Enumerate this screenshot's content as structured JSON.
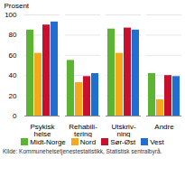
{
  "chart_data": {
    "type": "bar",
    "y_label": "Prosent",
    "categories": [
      "Psykisk\nhelse",
      "Rehabili-\ntering",
      "Utskriv-\nning",
      "Andre"
    ],
    "series": [
      {
        "name": "Midt-Norge",
        "color": "#5cb531",
        "values": [
          85,
          55,
          86,
          42
        ]
      },
      {
        "name": "Nord",
        "color": "#f5a81c",
        "values": [
          62,
          33,
          62,
          16
        ]
      },
      {
        "name": "Sør-Øst",
        "color": "#c8102e",
        "values": [
          90,
          39,
          87,
          40
        ]
      },
      {
        "name": "Vest",
        "color": "#1f6fd1",
        "values": [
          93,
          42,
          85,
          39
        ]
      }
    ],
    "ylim": [
      0,
      100
    ],
    "yticks": [
      0,
      20,
      40,
      60,
      80,
      100
    ],
    "grid": true,
    "legend": "bottom",
    "caption": "Kilde: Kommunehelsetjenestestatistikk, Statistisk sentralbyrå."
  }
}
